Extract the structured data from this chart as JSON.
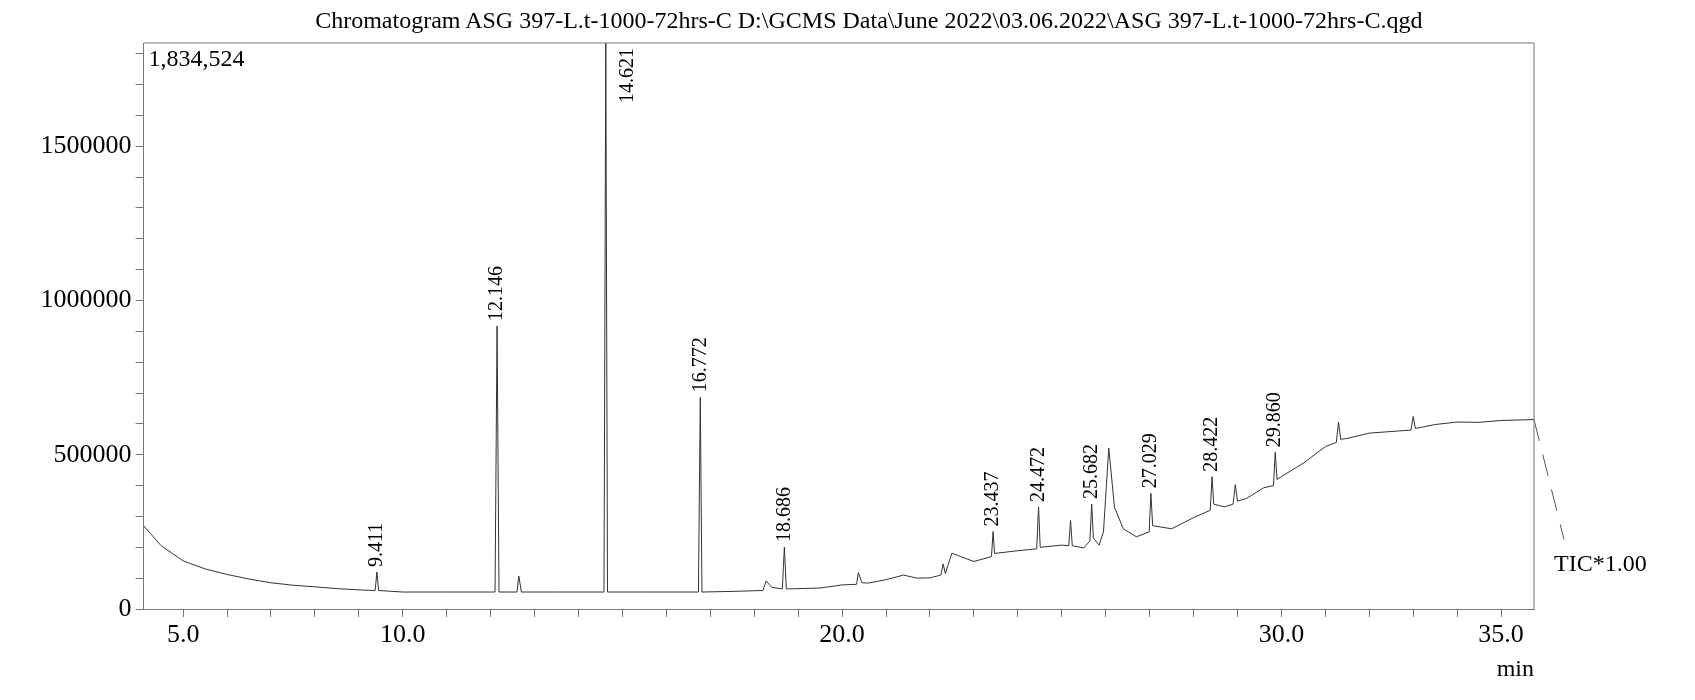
{
  "chart_data": {
    "type": "line",
    "title": "Chromatogram ASG 397-L.t-1000-72hrs-C D:\\GCMS Data\\June 2022\\03.06.2022\\ASG 397-L.t-1000-72hrs-C.qgd",
    "xlabel": "min",
    "xlim": [
      4.1,
      35.75
    ],
    "ylim": [
      0,
      1834524
    ],
    "xticks": [
      {
        "value": 5,
        "label": "5.0"
      },
      {
        "value": 6,
        "label": null
      },
      {
        "value": 7,
        "label": null
      },
      {
        "value": 8,
        "label": null
      },
      {
        "value": 9,
        "label": null
      },
      {
        "value": 10,
        "label": "10.0"
      },
      {
        "value": 11,
        "label": null
      },
      {
        "value": 12,
        "label": null
      },
      {
        "value": 13,
        "label": null
      },
      {
        "value": 14,
        "label": null
      },
      {
        "value": 15,
        "label": null
      },
      {
        "value": 16,
        "label": null
      },
      {
        "value": 17,
        "label": null
      },
      {
        "value": 18,
        "label": null
      },
      {
        "value": 19,
        "label": null
      },
      {
        "value": 20,
        "label": "20.0"
      },
      {
        "value": 21,
        "label": null
      },
      {
        "value": 22,
        "label": null
      },
      {
        "value": 23,
        "label": null
      },
      {
        "value": 24,
        "label": null
      },
      {
        "value": 25,
        "label": null
      },
      {
        "value": 26,
        "label": null
      },
      {
        "value": 27,
        "label": null
      },
      {
        "value": 28,
        "label": null
      },
      {
        "value": 29,
        "label": null
      },
      {
        "value": 30,
        "label": "30.0"
      },
      {
        "value": 31,
        "label": null
      },
      {
        "value": 32,
        "label": null
      },
      {
        "value": 33,
        "label": null
      },
      {
        "value": 34,
        "label": null
      },
      {
        "value": 35,
        "label": "35.0"
      }
    ],
    "yticks": [
      0,
      {
        "value": 100000,
        "label": null
      },
      {
        "value": 200000,
        "label": null
      },
      {
        "value": 300000,
        "label": null
      },
      {
        "value": 400000,
        "label": null
      },
      500000,
      {
        "value": 600000,
        "label": null
      },
      {
        "value": 700000,
        "label": null
      },
      {
        "value": 800000,
        "label": null
      },
      {
        "value": 900000,
        "label": null
      },
      1000000,
      {
        "value": 1100000,
        "label": null
      },
      {
        "value": 1200000,
        "label": null
      },
      {
        "value": 1300000,
        "label": null
      },
      {
        "value": 1400000,
        "label": null
      },
      1500000,
      {
        "value": 1600000,
        "label": null
      },
      {
        "value": 1700000,
        "label": null
      },
      {
        "value": 1800000,
        "label": null
      }
    ],
    "grid": false,
    "legend": false,
    "marker": "none",
    "line_style": "solid",
    "series": [
      {
        "color": "#333333",
        "x": [
          4.1,
          4.5,
          5,
          5.5,
          6,
          6.5,
          7,
          7.5,
          8,
          8.5,
          9,
          9.37,
          9.411,
          9.45,
          10,
          11,
          12.1,
          12.146,
          12.19,
          12.6,
          12.64,
          12.7,
          13.5,
          14.58,
          14.621,
          14.66,
          15.5,
          16.73,
          16.772,
          16.81,
          17.5,
          18.2,
          18.27,
          18.4,
          18.64,
          18.686,
          18.73,
          19.5,
          20,
          20.33,
          20.37,
          20.45,
          20.6,
          21,
          21.4,
          21.7,
          22,
          22.25,
          22.3,
          22.35,
          22.5,
          22.7,
          23,
          23.4,
          23.437,
          23.47,
          24,
          24.43,
          24.472,
          24.51,
          25,
          25.16,
          25.2,
          25.24,
          25.5,
          25.64,
          25.682,
          25.72,
          25.85,
          25.95,
          26.07,
          26.2,
          26.4,
          26.7,
          26.99,
          27.029,
          27.07,
          27.5,
          28,
          28.38,
          28.422,
          28.46,
          28.7,
          28.9,
          28.95,
          29.0,
          29.2,
          29.6,
          29.82,
          29.86,
          29.9,
          30,
          30.5,
          31,
          31.25,
          31.3,
          31.35,
          31.5,
          32,
          32.95,
          33.0,
          33.05,
          33.5,
          34,
          34.5,
          35,
          35.75
        ],
        "values": [
          270000,
          205000,
          156000,
          130000,
          112000,
          97000,
          85000,
          77000,
          72000,
          66000,
          62000,
          60000,
          120000,
          60000,
          55000,
          55000,
          55000,
          917000,
          55000,
          55000,
          107000,
          55000,
          55000,
          55000,
          1834524,
          55000,
          55000,
          55000,
          686000,
          55000,
          57000,
          60000,
          91000,
          70000,
          65000,
          201000,
          65000,
          68000,
          78000,
          80000,
          118000,
          85000,
          84000,
          95000,
          110000,
          100000,
          101000,
          110000,
          146000,
          115000,
          181000,
          170000,
          154000,
          170000,
          251000,
          180000,
          189000,
          195000,
          331000,
          200000,
          207000,
          205000,
          287000,
          205000,
          198000,
          220000,
          340000,
          230000,
          207000,
          250000,
          522000,
          330000,
          260000,
          234000,
          250000,
          375000,
          270000,
          260000,
          296000,
          320000,
          429000,
          340000,
          331000,
          340000,
          403000,
          350000,
          358000,
          393000,
          400000,
          508000,
          420000,
          429000,
          473000,
          526000,
          540000,
          606000,
          550000,
          553000,
          570000,
          580000,
          624000,
          585000,
          598000,
          606000,
          605000,
          611000,
          614000
        ]
      }
    ],
    "annotations": [
      "1,834,524",
      {
        "text": "9.411",
        "x": 9.411,
        "y": 120000
      },
      {
        "text": "12.146",
        "x": 12.146,
        "y": 917000
      },
      {
        "text": "14.621",
        "x": 14.621,
        "y": 1834524
      },
      {
        "text": "16.772",
        "x": 16.772,
        "y": 686000
      },
      {
        "text": "18.686",
        "x": 18.686,
        "y": 201000
      },
      {
        "text": "23.437",
        "x": 23.437,
        "y": 251000
      },
      {
        "text": "24.472",
        "x": 24.472,
        "y": 331000
      },
      {
        "text": "25.682",
        "x": 25.682,
        "y": 340000
      },
      {
        "text": "27.029",
        "x": 27.029,
        "y": 375000
      },
      {
        "text": "28.422",
        "x": 28.422,
        "y": 429000
      },
      {
        "text": "29.860",
        "x": 29.86,
        "y": 508000
      },
      {
        "text": "TIC*1.00",
        "x": 35.75,
        "y": 614000
      }
    ]
  }
}
